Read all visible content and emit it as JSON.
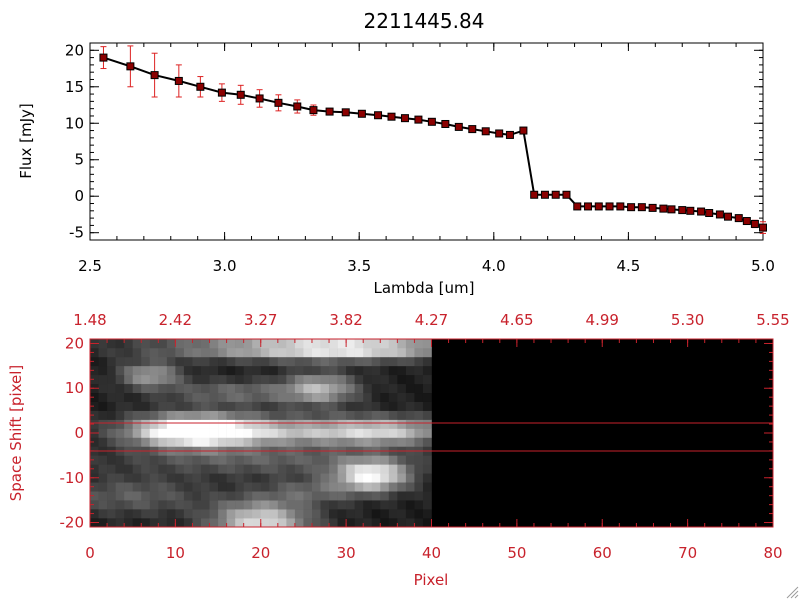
{
  "title": "2211445.84",
  "colors": {
    "text": "#000000",
    "accent_red": "#c8222c",
    "line": "#000000",
    "marker": "#8b0000",
    "errorbar": "#dd2222",
    "background": "#ffffff"
  },
  "chart_data": [
    {
      "type": "line",
      "title": "2211445.84",
      "xlabel": "Lambda [um]",
      "ylabel": "Flux [mJy]",
      "xlim": [
        2.5,
        5.0
      ],
      "ylim": [
        -6,
        21
      ],
      "xticks": [
        "2.5",
        "3.0",
        "3.5",
        "4.0",
        "4.5",
        "5.0"
      ],
      "yticks": [
        "20",
        "15",
        "10",
        "5",
        "0",
        "-5"
      ],
      "grid": false,
      "series": [
        {
          "x": [
            2.55,
            2.65,
            2.74,
            2.83,
            2.91,
            2.99,
            3.06,
            3.13,
            3.2,
            3.27,
            3.33,
            3.39,
            3.45,
            3.51,
            3.57,
            3.62,
            3.67,
            3.72,
            3.77,
            3.82,
            3.87,
            3.92,
            3.97,
            4.02,
            4.06,
            4.11,
            4.15,
            4.19,
            4.23,
            4.27,
            4.31,
            4.35,
            4.39,
            4.43,
            4.47,
            4.51,
            4.55,
            4.59,
            4.63,
            4.66,
            4.7,
            4.73,
            4.77,
            4.8,
            4.84,
            4.87,
            4.91,
            4.94,
            4.97,
            5.0
          ],
          "y": [
            19.0,
            17.8,
            16.6,
            15.8,
            15.0,
            14.2,
            13.9,
            13.4,
            12.8,
            12.3,
            11.8,
            11.6,
            11.5,
            11.3,
            11.1,
            10.9,
            10.7,
            10.5,
            10.2,
            9.9,
            9.5,
            9.2,
            8.9,
            8.6,
            8.4,
            9.0,
            0.2,
            0.2,
            0.2,
            0.2,
            -1.4,
            -1.4,
            -1.4,
            -1.4,
            -1.4,
            -1.5,
            -1.5,
            -1.6,
            -1.7,
            -1.8,
            -1.9,
            -2.0,
            -2.1,
            -2.3,
            -2.5,
            -2.8,
            -3.0,
            -3.4,
            -3.8,
            -4.3
          ],
          "yerr": [
            1.5,
            2.8,
            3.0,
            2.2,
            1.4,
            1.2,
            1.3,
            1.2,
            1.1,
            0.9,
            0.7,
            0.4,
            0.3,
            0.3,
            0.3,
            0.3,
            0.3,
            0.3,
            0.3,
            0.3,
            0.3,
            0.3,
            0.3,
            0.3,
            0.3,
            0.4,
            0.3,
            0.3,
            0.3,
            0.3,
            0.3,
            0.3,
            0.3,
            0.3,
            0.3,
            0.3,
            0.3,
            0.3,
            0.3,
            0.3,
            0.3,
            0.3,
            0.3,
            0.3,
            0.3,
            0.3,
            0.3,
            0.4,
            0.5,
            0.8
          ]
        }
      ]
    },
    {
      "type": "heatmap",
      "xlabel": "Pixel",
      "ylabel": "Space Shift [pixel]",
      "xlim": [
        0,
        80
      ],
      "ylim": [
        -21,
        21
      ],
      "xticks": [
        "0",
        "10",
        "20",
        "30",
        "40",
        "50",
        "60",
        "70",
        "80"
      ],
      "yticks": [
        "20",
        "10",
        "0",
        "-10",
        "-20"
      ],
      "top_axis_ticks": [
        "1.48",
        "2.42",
        "3.27",
        "3.82",
        "4.27",
        "4.65",
        "4.99",
        "5.30",
        "5.55"
      ],
      "horizontal_lines": [
        3,
        -3
      ],
      "data_extent_pixels": [
        0,
        40
      ],
      "colormap": "grayscale",
      "blobs": [
        {
          "x": 12,
          "y": 0.5,
          "sx": 5,
          "sy": 2.5,
          "v": 1.0
        },
        {
          "x": 24,
          "y": 0.5,
          "sx": 10,
          "sy": 2.2,
          "v": 0.55
        },
        {
          "x": 35,
          "y": 0.5,
          "sx": 5,
          "sy": 2.2,
          "v": 0.42
        },
        {
          "x": 32,
          "y": 19,
          "sx": 8,
          "sy": 1.8,
          "v": 0.65
        },
        {
          "x": 20,
          "y": 19,
          "sx": 10,
          "sy": 1.8,
          "v": 0.45
        },
        {
          "x": 7,
          "y": 13,
          "sx": 2.5,
          "sy": 2,
          "v": 0.5
        },
        {
          "x": 27,
          "y": 10,
          "sx": 3,
          "sy": 2.5,
          "v": 0.55
        },
        {
          "x": 17,
          "y": 9,
          "sx": 6,
          "sy": 2,
          "v": 0.3
        },
        {
          "x": 33,
          "y": -9.5,
          "sx": 3,
          "sy": 2.5,
          "v": 0.85
        },
        {
          "x": 20,
          "y": -20,
          "sx": 4,
          "sy": 3.5,
          "v": 0.75
        },
        {
          "x": 5,
          "y": -14,
          "sx": 6,
          "sy": 3,
          "v": 0.25
        },
        {
          "x": 20,
          "y": -6,
          "sx": 12,
          "sy": 2.5,
          "v": 0.25
        },
        {
          "x": 26,
          "y": -13,
          "sx": 4,
          "sy": 2,
          "v": 0.25
        }
      ]
    }
  ]
}
